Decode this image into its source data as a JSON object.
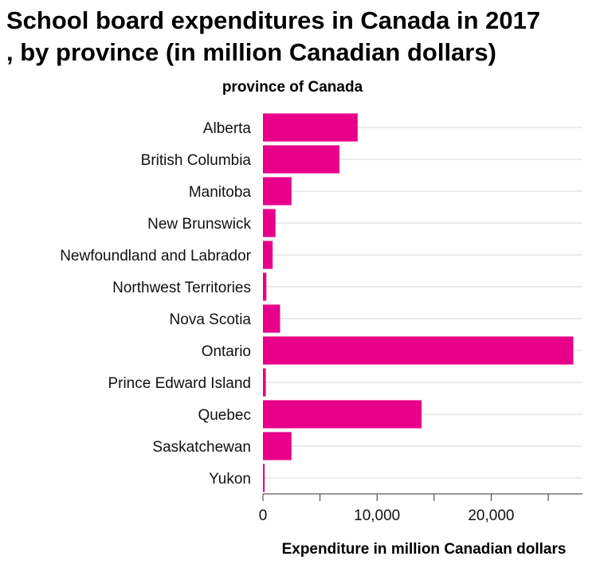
{
  "chart_data": {
    "type": "bar",
    "orientation": "horizontal",
    "title_lines": [
      "School board expenditures in Canada in 2017",
      ", by province (in million Canadian dollars)"
    ],
    "ylabel": "province of Canada",
    "xlabel": "Expenditure in million Canadian dollars",
    "categories": [
      "Alberta",
      "British Columbia",
      "Manitoba",
      "New Brunswick",
      "Newfoundland and Labrador",
      "Northwest Territories",
      "Nova Scotia",
      "Ontario",
      "Prince Edward Island",
      "Quebec",
      "Saskatchewan",
      "Yukon"
    ],
    "values": [
      8300,
      6700,
      2500,
      1100,
      850,
      300,
      1500,
      27200,
      250,
      13900,
      2500,
      150
    ],
    "xlim": [
      0,
      28000
    ],
    "xticks": [
      0,
      10000,
      20000
    ],
    "xtick_labels": [
      "0",
      "10,000",
      "20,000"
    ],
    "bar_color": "#e8008a",
    "grid": "vertical",
    "grid_color": "#d9d9d9"
  }
}
